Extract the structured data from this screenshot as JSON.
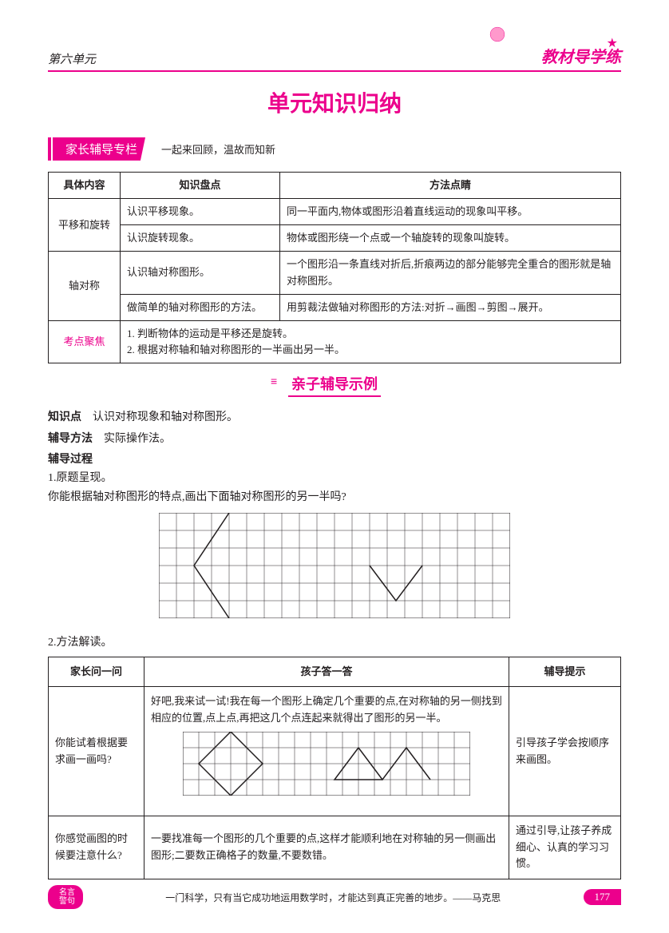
{
  "header": {
    "unit": "第六单元",
    "brand_part1": "教材",
    "brand_part2": "导学练"
  },
  "title": "单元知识归纳",
  "section1": {
    "tag": "家长辅导专栏",
    "subtitle": "一起来回顾，温故而知新"
  },
  "table1": {
    "headers": [
      "具体内容",
      "知识盘点",
      "方法点睛"
    ],
    "rows": [
      {
        "topic": "平移和旋转",
        "k": "认识平移现象。",
        "m": "同一平面内,物体或图形沿着直线运动的现象叫平移。"
      },
      {
        "k": "认识旋转现象。",
        "m": "物体或图形绕一个点或一个轴旋转的现象叫旋转。"
      },
      {
        "topic": "轴对称",
        "k": "认识轴对称图形。",
        "m": "一个图形沿一条直线对折后,折痕两边的部分能够完全重合的图形就是轴对称图形。"
      },
      {
        "k": "做简单的轴对称图形的方法。",
        "m": "用剪裁法做轴对称图形的方法:对折→画图→剪图→展开。"
      }
    ],
    "focus_label": "考点聚焦",
    "focus_items": [
      "1. 判断物体的运动是平移还是旋转。",
      "2. 根据对称轴和轴对称图形的一半画出另一半。"
    ]
  },
  "subheader": "亲子辅导示例",
  "content": {
    "kp_label": "知识点",
    "kp_text": "认识对称现象和轴对称图形。",
    "method_label": "辅导方法",
    "method_text": "实际操作法。",
    "process_label": "辅导过程",
    "step1": "1.原题呈现。",
    "step1_q": "你能根据轴对称图形的特点,画出下面轴对称图形的另一半吗?",
    "step2": "2.方法解读。"
  },
  "grid1": {
    "cols": 20,
    "rows": 6,
    "cell": 22,
    "shapes": [
      {
        "points": [
          [
            4,
            0
          ],
          [
            2,
            3
          ],
          [
            4,
            6
          ]
        ]
      },
      {
        "points": [
          [
            12,
            3
          ],
          [
            13.5,
            5
          ],
          [
            15,
            3
          ]
        ]
      }
    ]
  },
  "table2": {
    "headers": [
      "家长问一问",
      "孩子答一答",
      "辅导提示"
    ],
    "rows": [
      {
        "q": "你能试着根据要求画一画吗?",
        "a_text": "好吧,我来试一试!我在每一个图形上确定几个重要的点,在对称轴的另一侧找到相应的位置,点上点,再把这几个点连起来就得出了图形的另一半。",
        "tip": "引导孩子学会按顺序来画图。",
        "has_grid": true
      },
      {
        "q": "你感觉画图的时候要注意什么?",
        "a_text": "一要找准每一个图形的几个重要的点,这样才能顺利地在对称轴的另一侧画出图形;二要数正确格子的数量,不要数错。",
        "tip": "通过引导,让孩子养成细心、认真的学习习惯。"
      }
    ]
  },
  "grid2": {
    "cols": 18,
    "rows": 4,
    "cell": 20,
    "shapes": [
      {
        "points": [
          [
            3,
            0
          ],
          [
            1,
            2
          ],
          [
            3,
            4
          ],
          [
            5,
            2
          ],
          [
            3,
            0
          ]
        ]
      },
      {
        "points": [
          [
            11,
            1
          ],
          [
            12.5,
            3
          ],
          [
            14,
            1
          ],
          [
            15.5,
            3
          ],
          [
            14,
            1
          ]
        ]
      },
      {
        "points": [
          [
            11,
            1
          ],
          [
            9.5,
            3
          ],
          [
            12.5,
            3
          ]
        ]
      }
    ]
  },
  "footer": {
    "badge": "名言\n警句",
    "quote": "一门科学，只有当它成功地运用数学时，才能达到真正完善的地步。——马克思",
    "page": "177"
  }
}
